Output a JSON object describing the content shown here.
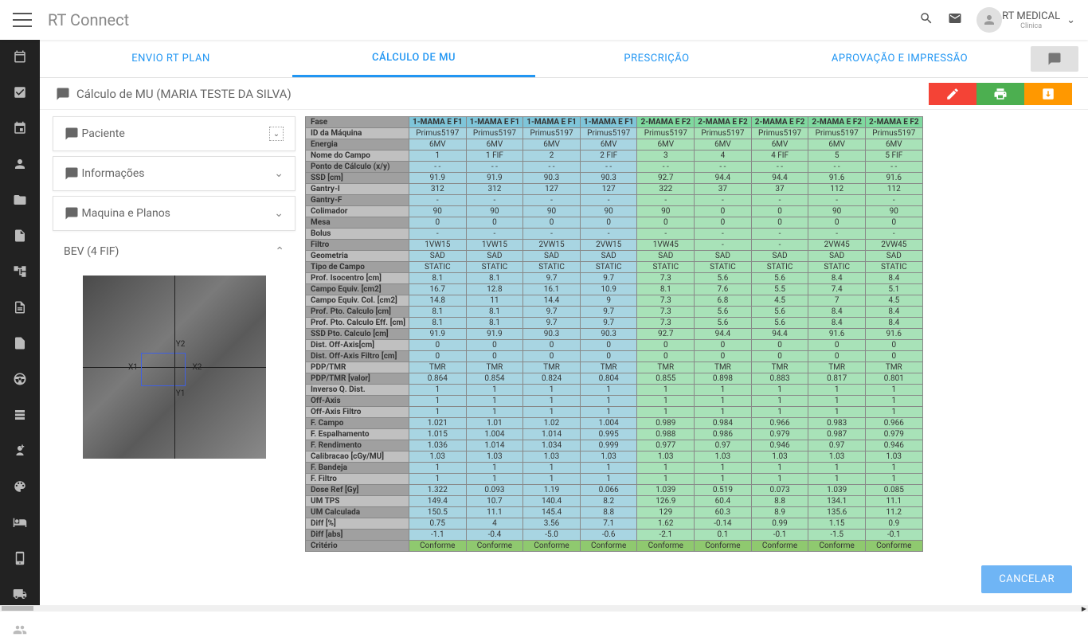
{
  "app": {
    "title": "RT Connect",
    "user": "RT MEDICAL",
    "clinic": "Clinica"
  },
  "tabs": [
    "ENVIO RT PLAN",
    "CÁLCULO DE MU",
    "PRESCRIÇÃO",
    "APROVAÇÃO E IMPRESSÃO"
  ],
  "active_tab": 1,
  "header": {
    "title": "Cálculo de MU (MARIA TESTE DA SILVA)"
  },
  "panels": [
    "Paciente",
    "Informações",
    "Maquina e Planos",
    "BEV (4 FIF)"
  ],
  "bev_labels": [
    "Y2",
    "X1",
    "X2",
    "Y1"
  ],
  "footer": {
    "cancel": "CANCELAR"
  },
  "colors": {
    "phase1_header": "#7fc5d9",
    "phase1_cell": "#a8d5e2",
    "phase2_header": "#7fd99f",
    "phase2_cell": "#a8e2b8",
    "label_light": "#c0c0c0",
    "label_dark": "#a0a0a0",
    "criterio": "#8fc96f",
    "accent": "#2196f3",
    "btn_red": "#f44336",
    "btn_green": "#4caf50",
    "btn_orange": "#ff9800",
    "cancel": "#6fb5f5"
  },
  "table": {
    "phase_cols": [
      {
        "phase": "1-MAMA E F1",
        "n": 4,
        "cls": "ph1"
      },
      {
        "phase": "2-MAMA E F2",
        "n": 5,
        "cls": "ph2"
      }
    ],
    "rows": [
      {
        "label": "Fase",
        "dk": 1,
        "header": 1,
        "v": [
          "1-MAMA E F1",
          "1-MAMA E F1",
          "1-MAMA E F1",
          "1-MAMA E F1",
          "2-MAMA E F2",
          "2-MAMA E F2",
          "2-MAMA E F2",
          "2-MAMA E F2",
          "2-MAMA E F2"
        ]
      },
      {
        "label": "ID da Máquina",
        "dk": 0,
        "v": [
          "Primus5197",
          "Primus5197",
          "Primus5197",
          "Primus5197",
          "Primus5197",
          "Primus5197",
          "Primus5197",
          "Primus5197",
          "Primus5197"
        ]
      },
      {
        "label": "Energia",
        "dk": 1,
        "v": [
          "6MV",
          "6MV",
          "6MV",
          "6MV",
          "6MV",
          "6MV",
          "6MV",
          "6MV",
          "6MV"
        ]
      },
      {
        "label": "Nome do Campo",
        "dk": 0,
        "v": [
          "1",
          "1 FIF",
          "2",
          "2 FIF",
          "3",
          "4",
          "4 FIF",
          "5",
          "5 FIF"
        ]
      },
      {
        "label": "Ponto de Cálculo (x/y)",
        "dk": 1,
        "v": [
          "-    -",
          "-    -",
          "-    -",
          "-    -",
          "-    -",
          "-    -",
          "-    -",
          "-    -",
          "-    -"
        ]
      },
      {
        "label": "SSD [cm]",
        "dk": 1,
        "v": [
          "91.9",
          "91.9",
          "90.3",
          "90.3",
          "92.7",
          "94.4",
          "94.4",
          "91.6",
          "91.6"
        ]
      },
      {
        "label": "Gantry-I",
        "dk": 0,
        "v": [
          "312",
          "312",
          "127",
          "127",
          "322",
          "37",
          "37",
          "112",
          "112"
        ]
      },
      {
        "label": "Gantry-F",
        "dk": 1,
        "v": [
          "-",
          "-",
          "-",
          "-",
          "-",
          "-",
          "-",
          "-",
          "-"
        ]
      },
      {
        "label": "Colimador",
        "dk": 0,
        "v": [
          "90",
          "90",
          "90",
          "90",
          "90",
          "0",
          "0",
          "90",
          "90"
        ]
      },
      {
        "label": "Mesa",
        "dk": 1,
        "v": [
          "0",
          "0",
          "0",
          "0",
          "0",
          "0",
          "0",
          "0",
          "0"
        ]
      },
      {
        "label": "Bolus",
        "dk": 0,
        "v": [
          "-",
          "-",
          "-",
          "-",
          "-",
          "-",
          "-",
          "-",
          "-"
        ]
      },
      {
        "label": "Filtro",
        "dk": 1,
        "v": [
          "1VW15",
          "1VW15",
          "2VW15",
          "2VW15",
          "1VW45",
          "-",
          "-",
          "2VW45",
          "2VW45"
        ]
      },
      {
        "label": "Geometria",
        "dk": 0,
        "v": [
          "SAD",
          "SAD",
          "SAD",
          "SAD",
          "SAD",
          "SAD",
          "SAD",
          "SAD",
          "SAD"
        ]
      },
      {
        "label": "Tipo de Campo",
        "dk": 1,
        "v": [
          "STATIC",
          "STATIC",
          "STATIC",
          "STATIC",
          "STATIC",
          "STATIC",
          "STATIC",
          "STATIC",
          "STATIC"
        ]
      },
      {
        "label": "Prof. Isocentro [cm]",
        "dk": 0,
        "v": [
          "8.1",
          "8.1",
          "9.7",
          "9.7",
          "7.3",
          "5.6",
          "5.6",
          "8.4",
          "8.4"
        ]
      },
      {
        "label": "Campo Equiv. [cm2]",
        "dk": 1,
        "v": [
          "16.7",
          "12.8",
          "16.1",
          "10.9",
          "8.1",
          "7.6",
          "5.5",
          "7.4",
          "5.1"
        ]
      },
      {
        "label": "Campo Equiv. Col. [cm2]",
        "dk": 0,
        "v": [
          "14.8",
          "11",
          "14.4",
          "9",
          "7.3",
          "6.8",
          "4.5",
          "7",
          "4.5"
        ]
      },
      {
        "label": "Prof. Pto. Calculo [cm]",
        "dk": 1,
        "v": [
          "8.1",
          "8.1",
          "9.7",
          "9.7",
          "7.3",
          "5.6",
          "5.6",
          "8.4",
          "8.4"
        ]
      },
      {
        "label": "Prof. Pto. Calculo Eff. [cm]",
        "dk": 0,
        "v": [
          "8.1",
          "8.1",
          "9.7",
          "9.7",
          "7.3",
          "5.6",
          "5.6",
          "8.4",
          "8.4"
        ]
      },
      {
        "label": "SSD Pto. Calculo [cm]",
        "dk": 1,
        "v": [
          "91.9",
          "91.9",
          "90.3",
          "90.3",
          "92.7",
          "94.4",
          "94.4",
          "91.6",
          "91.6"
        ]
      },
      {
        "label": "Dist. Off-Axis[cm]",
        "dk": 0,
        "v": [
          "0",
          "0",
          "0",
          "0",
          "0",
          "0",
          "0",
          "0",
          "0"
        ]
      },
      {
        "label": "Dist. Off-Axis Filtro [cm]",
        "dk": 1,
        "v": [
          "0",
          "0",
          "0",
          "0",
          "0",
          "0",
          "0",
          "0",
          "0"
        ]
      },
      {
        "label": "PDP/TMR",
        "dk": 0,
        "v": [
          "TMR",
          "TMR",
          "TMR",
          "TMR",
          "TMR",
          "TMR",
          "TMR",
          "TMR",
          "TMR"
        ]
      },
      {
        "label": "PDP/TMR [valor]",
        "dk": 1,
        "v": [
          "0.864",
          "0.854",
          "0.824",
          "0.804",
          "0.855",
          "0.898",
          "0.883",
          "0.817",
          "0.801"
        ]
      },
      {
        "label": "Inverso Q. Dist.",
        "dk": 0,
        "v": [
          "1",
          "1",
          "1",
          "1",
          "1",
          "1",
          "1",
          "1",
          "1"
        ]
      },
      {
        "label": "Off-Axis",
        "dk": 1,
        "v": [
          "1",
          "1",
          "1",
          "1",
          "1",
          "1",
          "1",
          "1",
          "1"
        ]
      },
      {
        "label": "Off-Axis Filtro",
        "dk": 0,
        "v": [
          "1",
          "1",
          "1",
          "1",
          "1",
          "1",
          "1",
          "1",
          "1"
        ]
      },
      {
        "label": "F. Campo",
        "dk": 1,
        "v": [
          "1.021",
          "1.01",
          "1.02",
          "1.004",
          "0.989",
          "0.984",
          "0.966",
          "0.983",
          "0.966"
        ]
      },
      {
        "label": "F. Espalhamento",
        "dk": 0,
        "v": [
          "1.015",
          "1.004",
          "1.014",
          "0.995",
          "0.988",
          "0.986",
          "0.979",
          "0.987",
          "0.979"
        ]
      },
      {
        "label": "F. Rendimento",
        "dk": 1,
        "v": [
          "1.036",
          "1.014",
          "1.034",
          "0.999",
          "0.977",
          "0.97",
          "0.946",
          "0.97",
          "0.946"
        ]
      },
      {
        "label": "Calibracao [cGy/MU]",
        "dk": 0,
        "v": [
          "1.03",
          "1.03",
          "1.03",
          "1.03",
          "1.03",
          "1.03",
          "1.03",
          "1.03",
          "1.03"
        ]
      },
      {
        "label": "F. Bandeja",
        "dk": 1,
        "v": [
          "1",
          "1",
          "1",
          "1",
          "1",
          "1",
          "1",
          "1",
          "1"
        ]
      },
      {
        "label": "F. Filtro",
        "dk": 0,
        "v": [
          "1",
          "1",
          "1",
          "1",
          "1",
          "1",
          "1",
          "1",
          "1"
        ]
      },
      {
        "label": "Dose Ref [Gy]",
        "dk": 1,
        "v": [
          "1.322",
          "0.093",
          "1.19",
          "0.066",
          "1.039",
          "0.519",
          "0.073",
          "1.039",
          "0.085"
        ]
      },
      {
        "label": "UM TPS",
        "dk": 0,
        "v": [
          "149.4",
          "10.7",
          "140.4",
          "8.2",
          "126.9",
          "60.4",
          "8.8",
          "134.1",
          "11.1"
        ]
      },
      {
        "label": "UM Calculada",
        "dk": 1,
        "v": [
          "150.5",
          "11.1",
          "145.4",
          "8.8",
          "129",
          "60.3",
          "8.9",
          "135.6",
          "11.2"
        ]
      },
      {
        "label": "Diff [%]",
        "dk": 0,
        "v": [
          "0.75",
          "4",
          "3.56",
          "7.1",
          "1.62",
          "-0.14",
          "0.99",
          "1.15",
          "0.9"
        ]
      },
      {
        "label": "Diff [abs]",
        "dk": 1,
        "v": [
          "-1.1",
          "-0.4",
          "-5.0",
          "-0.6",
          "-2.1",
          "0.1",
          "-0.1",
          "-1.5",
          "-0.1"
        ]
      },
      {
        "label": "Critério",
        "dk": 1,
        "crit": 1,
        "v": [
          "Conforme",
          "Conforme",
          "Conforme",
          "Conforme",
          "Conforme",
          "Conforme",
          "Conforme",
          "Conforme",
          "Conforme"
        ]
      }
    ],
    "visible_cols": 9
  }
}
